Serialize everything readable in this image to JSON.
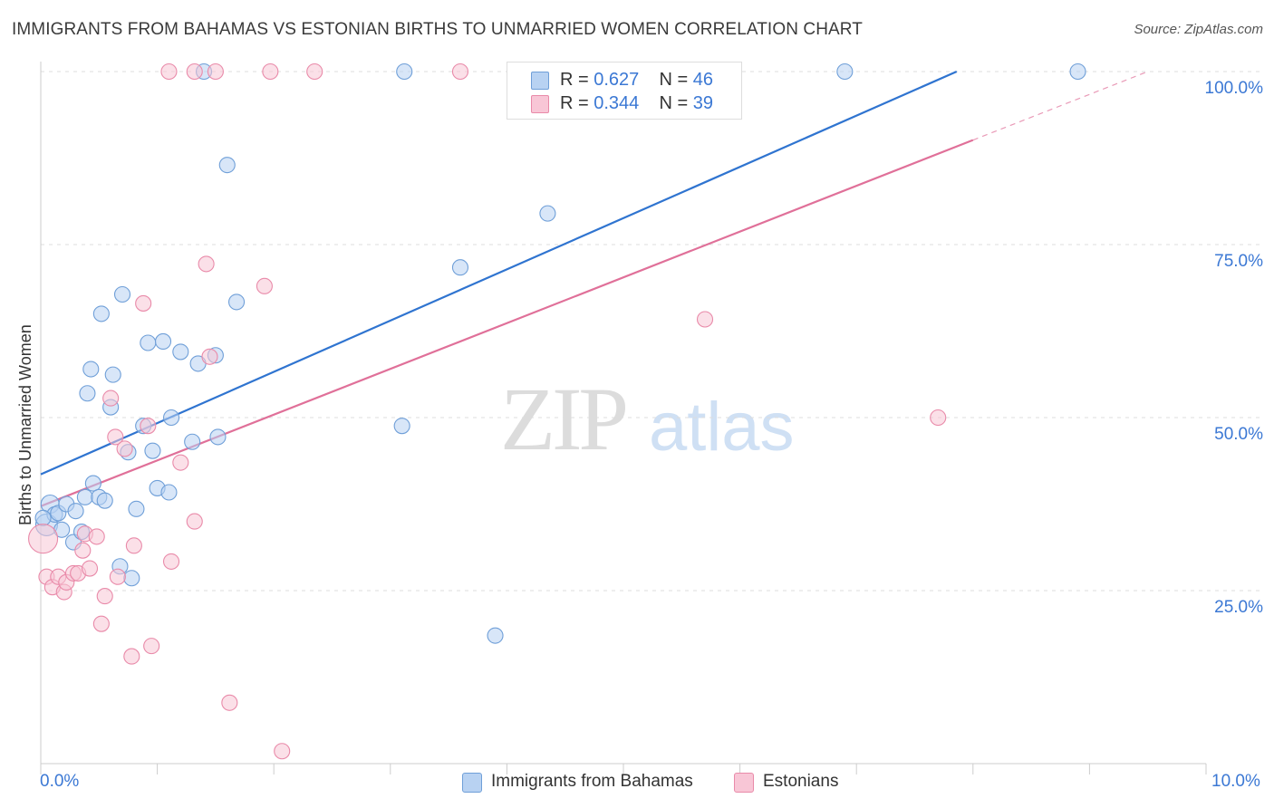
{
  "title": "IMMIGRANTS FROM BAHAMAS VS ESTONIAN BIRTHS TO UNMARRIED WOMEN CORRELATION CHART",
  "source": "Source: ZipAtlas.com",
  "watermark": {
    "zip": "ZIP",
    "atlas": "atlas"
  },
  "legend_top": {
    "rows": [
      {
        "r_label": "R = ",
        "r_value": "0.627",
        "n_label": "N = ",
        "n_value": "46"
      },
      {
        "r_label": "R = ",
        "r_value": "0.344",
        "n_label": "N = ",
        "n_value": "39"
      }
    ]
  },
  "colors": {
    "blue_fill": "#b8d2f2",
    "blue_stroke": "#6f9fd8",
    "blue_line": "#2f74d0",
    "pink_fill": "#f8c6d6",
    "pink_stroke": "#e98aa9",
    "pink_line": "#e07099",
    "grid": "#dddddd",
    "tick_text": "#3b78d4"
  },
  "chart_data": {
    "type": "scatter",
    "title": "IMMIGRANTS FROM BAHAMAS VS ESTONIAN BIRTHS TO UNMARRIED WOMEN CORRELATION CHART",
    "xlabel": "",
    "ylabel": "Births to Unmarried Women",
    "xlim": [
      0,
      10
    ],
    "ylim": [
      0,
      100
    ],
    "x_tick_labels": [
      "0.0%",
      "10.0%"
    ],
    "y_tick_labels": [
      "25.0%",
      "50.0%",
      "75.0%",
      "100.0%"
    ],
    "y_ticks": [
      25,
      50,
      75,
      100
    ],
    "legend_position": "bottom-center",
    "series": [
      {
        "name": "Immigrants from Bahamas",
        "color_key": "blue",
        "r": 0.627,
        "n": 46,
        "trend": {
          "x0": 0,
          "y0": 41.8,
          "x1": 7.86,
          "y1": 100
        },
        "points": [
          {
            "x": 0.05,
            "y": 34.5,
            "s": 12
          },
          {
            "x": 0.08,
            "y": 37.5,
            "s": 10
          },
          {
            "x": 0.12,
            "y": 36
          },
          {
            "x": 0.15,
            "y": 36.2
          },
          {
            "x": 0.18,
            "y": 33.8
          },
          {
            "x": 0.22,
            "y": 37.5
          },
          {
            "x": 0.28,
            "y": 32
          },
          {
            "x": 0.3,
            "y": 36.5
          },
          {
            "x": 0.35,
            "y": 33.5
          },
          {
            "x": 0.38,
            "y": 38.5
          },
          {
            "x": 0.4,
            "y": 53.5
          },
          {
            "x": 0.43,
            "y": 57
          },
          {
            "x": 0.45,
            "y": 40.5
          },
          {
            "x": 0.5,
            "y": 38.5
          },
          {
            "x": 0.52,
            "y": 65
          },
          {
            "x": 0.55,
            "y": 38
          },
          {
            "x": 0.6,
            "y": 51.5
          },
          {
            "x": 0.62,
            "y": 56.2
          },
          {
            "x": 0.68,
            "y": 28.5
          },
          {
            "x": 0.7,
            "y": 67.8
          },
          {
            "x": 0.75,
            "y": 45
          },
          {
            "x": 0.78,
            "y": 26.8
          },
          {
            "x": 0.82,
            "y": 36.8
          },
          {
            "x": 0.88,
            "y": 48.8
          },
          {
            "x": 0.92,
            "y": 60.8
          },
          {
            "x": 0.96,
            "y": 45.2
          },
          {
            "x": 1.0,
            "y": 39.8
          },
          {
            "x": 1.05,
            "y": 61
          },
          {
            "x": 1.1,
            "y": 39.2
          },
          {
            "x": 1.12,
            "y": 50
          },
          {
            "x": 1.2,
            "y": 59.5
          },
          {
            "x": 1.3,
            "y": 46.5
          },
          {
            "x": 1.35,
            "y": 57.8
          },
          {
            "x": 1.4,
            "y": 100
          },
          {
            "x": 1.5,
            "y": 59
          },
          {
            "x": 1.52,
            "y": 47.2
          },
          {
            "x": 1.6,
            "y": 86.5
          },
          {
            "x": 1.68,
            "y": 66.7
          },
          {
            "x": 3.12,
            "y": 100
          },
          {
            "x": 3.1,
            "y": 48.8
          },
          {
            "x": 3.6,
            "y": 71.7
          },
          {
            "x": 3.9,
            "y": 18.5
          },
          {
            "x": 4.35,
            "y": 79.5
          },
          {
            "x": 6.9,
            "y": 100
          },
          {
            "x": 8.9,
            "y": 100
          },
          {
            "x": 0.02,
            "y": 35.5
          }
        ]
      },
      {
        "name": "Estonians",
        "color_key": "pink",
        "r": 0.344,
        "n": 39,
        "trend": {
          "x0": 0,
          "y0": 37.2,
          "x1": 8.0,
          "y1": 90.1,
          "dash_x1": 9.5,
          "dash_y1": 100
        },
        "points": [
          {
            "x": 0.02,
            "y": 32.5,
            "s": 16
          },
          {
            "x": 0.05,
            "y": 27
          },
          {
            "x": 0.1,
            "y": 25.5
          },
          {
            "x": 0.15,
            "y": 27
          },
          {
            "x": 0.2,
            "y": 24.8
          },
          {
            "x": 0.22,
            "y": 26.2
          },
          {
            "x": 0.28,
            "y": 27.5
          },
          {
            "x": 0.32,
            "y": 27.5
          },
          {
            "x": 0.36,
            "y": 30.8
          },
          {
            "x": 0.38,
            "y": 33.2
          },
          {
            "x": 0.42,
            "y": 28.2
          },
          {
            "x": 0.48,
            "y": 32.8
          },
          {
            "x": 0.52,
            "y": 20.2
          },
          {
            "x": 0.55,
            "y": 24.2
          },
          {
            "x": 0.6,
            "y": 52.8
          },
          {
            "x": 0.64,
            "y": 47.2
          },
          {
            "x": 0.66,
            "y": 27
          },
          {
            "x": 0.72,
            "y": 45.5
          },
          {
            "x": 0.78,
            "y": 15.5
          },
          {
            "x": 0.8,
            "y": 31.5
          },
          {
            "x": 0.88,
            "y": 66.5
          },
          {
            "x": 0.92,
            "y": 48.8
          },
          {
            "x": 0.95,
            "y": 17
          },
          {
            "x": 1.1,
            "y": 100
          },
          {
            "x": 1.12,
            "y": 29.2
          },
          {
            "x": 1.2,
            "y": 43.5
          },
          {
            "x": 1.32,
            "y": 100
          },
          {
            "x": 1.32,
            "y": 35
          },
          {
            "x": 1.42,
            "y": 72.2
          },
          {
            "x": 1.45,
            "y": 58.8
          },
          {
            "x": 1.5,
            "y": 100
          },
          {
            "x": 1.62,
            "y": 8.8
          },
          {
            "x": 1.92,
            "y": 69
          },
          {
            "x": 1.97,
            "y": 100
          },
          {
            "x": 2.07,
            "y": 1.8
          },
          {
            "x": 2.35,
            "y": 100
          },
          {
            "x": 3.6,
            "y": 100
          },
          {
            "x": 5.7,
            "y": 64.2
          },
          {
            "x": 7.7,
            "y": 50
          }
        ]
      }
    ]
  }
}
